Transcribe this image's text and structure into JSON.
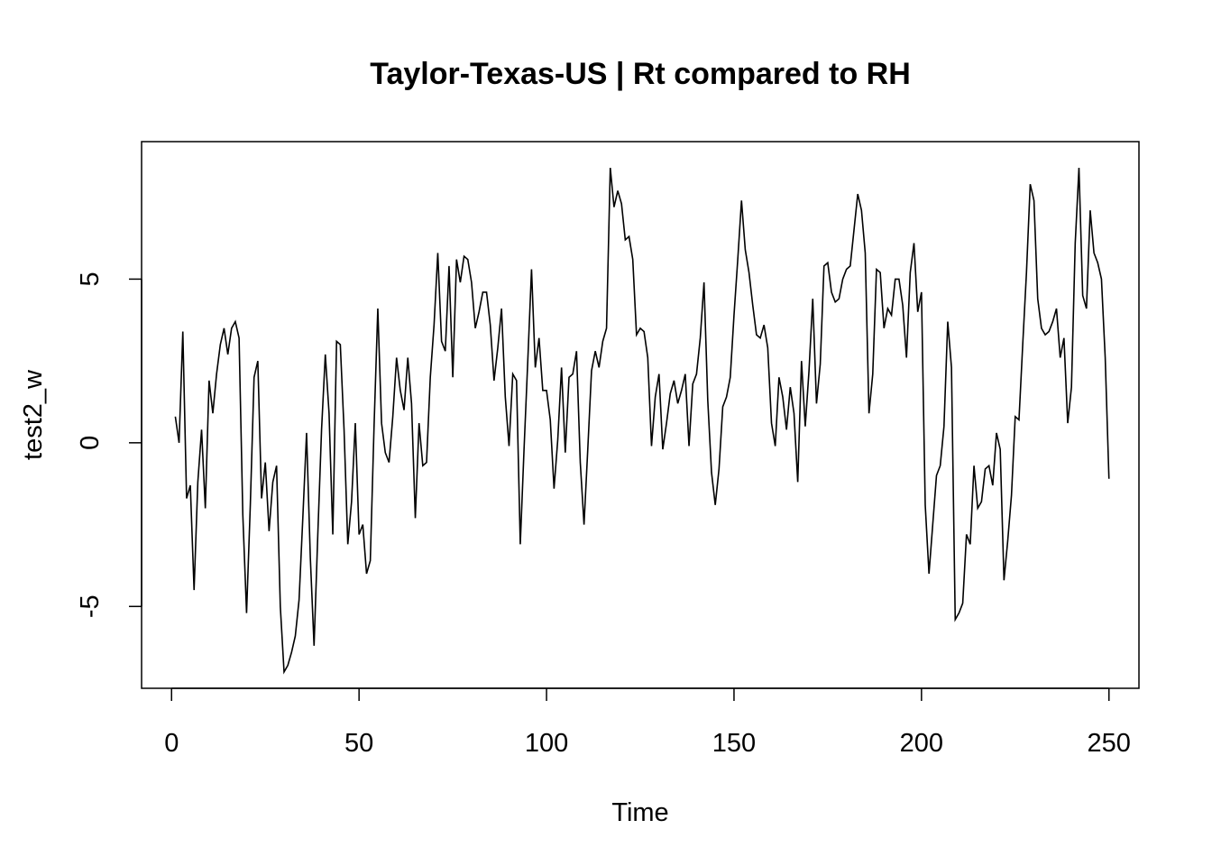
{
  "chart_data": {
    "type": "line",
    "title": "Taylor-Texas-US | Rt compared to RH",
    "xlabel": "Time",
    "ylabel": "test2_w",
    "xlim": [
      -8,
      258
    ],
    "ylim": [
      -7.5,
      9.2
    ],
    "x_ticks": [
      0,
      50,
      100,
      150,
      200,
      250
    ],
    "y_ticks": [
      -5,
      0,
      5
    ],
    "x_tick_labels": [
      "0",
      "50",
      "100",
      "150",
      "200",
      "250"
    ],
    "y_tick_labels": [
      "-5",
      "0",
      "5"
    ],
    "grid": false,
    "series": [
      {
        "x_start": 1,
        "values": [
          0.8,
          0.0,
          3.4,
          -1.7,
          -1.3,
          -4.5,
          -1.2,
          0.4,
          -2.0,
          1.9,
          0.9,
          2.1,
          3.0,
          3.5,
          2.7,
          3.5,
          3.7,
          3.2,
          -2.2,
          -5.2,
          -1.9,
          2.0,
          2.5,
          -1.7,
          -0.6,
          -2.7,
          -1.2,
          -0.7,
          -5.0,
          -7.0,
          -6.8,
          -6.4,
          -5.9,
          -4.8,
          -2.3,
          0.3,
          -3.5,
          -6.2,
          -2.8,
          0.4,
          2.7,
          0.9,
          -2.8,
          3.1,
          3.0,
          0.4,
          -3.1,
          -1.8,
          0.6,
          -2.8,
          -2.5,
          -4.0,
          -3.6,
          0.5,
          4.1,
          0.6,
          -0.3,
          -0.6,
          0.8,
          2.6,
          1.6,
          1.0,
          2.6,
          1.2,
          -2.3,
          0.6,
          -0.7,
          -0.6,
          2.0,
          3.6,
          5.8,
          3.1,
          2.8,
          5.4,
          2.0,
          5.6,
          4.9,
          5.7,
          5.6,
          4.9,
          3.5,
          4.0,
          4.6,
          4.6,
          3.6,
          1.9,
          2.9,
          4.1,
          1.4,
          -0.1,
          2.1,
          1.9,
          -3.1,
          -0.2,
          2.5,
          5.3,
          2.3,
          3.2,
          1.6,
          1.6,
          0.7,
          -1.4,
          0.1,
          2.3,
          -0.3,
          2.0,
          2.1,
          2.8,
          -0.6,
          -2.5,
          -0.2,
          2.2,
          2.8,
          2.3,
          3.1,
          3.5,
          8.4,
          7.2,
          7.7,
          7.3,
          6.2,
          6.3,
          5.6,
          3.3,
          3.5,
          3.4,
          2.6,
          -0.1,
          1.4,
          2.1,
          -0.2,
          0.6,
          1.5,
          1.9,
          1.2,
          1.6,
          2.1,
          -0.1,
          1.8,
          2.1,
          3.2,
          4.9,
          1.3,
          -0.9,
          -1.9,
          -0.8,
          1.1,
          1.4,
          2.0,
          3.9,
          5.6,
          7.4,
          5.9,
          5.2,
          4.2,
          3.3,
          3.2,
          3.6,
          2.9,
          0.6,
          -0.1,
          2.0,
          1.4,
          0.4,
          1.7,
          0.9,
          -1.2,
          2.5,
          0.5,
          2.2,
          4.4,
          1.2,
          2.4,
          5.4,
          5.5,
          4.6,
          4.3,
          4.4,
          5.0,
          5.3,
          5.4,
          6.5,
          7.6,
          7.1,
          5.8,
          0.9,
          2.1,
          5.3,
          5.2,
          3.5,
          4.1,
          3.9,
          5.0,
          5.0,
          4.2,
          2.6,
          5.2,
          6.1,
          4.0,
          4.6,
          -1.9,
          -4.0,
          -2.5,
          -1.0,
          -0.7,
          0.5,
          3.7,
          2.3,
          -5.4,
          -5.2,
          -4.9,
          -2.8,
          -3.1,
          -0.7,
          -2.0,
          -1.8,
          -0.8,
          -0.7,
          -1.3,
          0.3,
          -0.2,
          -4.2,
          -3.0,
          -1.6,
          0.8,
          0.7,
          3.0,
          5.2,
          7.9,
          7.4,
          4.4,
          3.5,
          3.3,
          3.4,
          3.7,
          4.1,
          2.6,
          3.2,
          0.6,
          1.7,
          6.1,
          8.4,
          4.5,
          4.1,
          7.1,
          5.8,
          5.5,
          5.0,
          2.6,
          -1.1
        ]
      }
    ]
  }
}
